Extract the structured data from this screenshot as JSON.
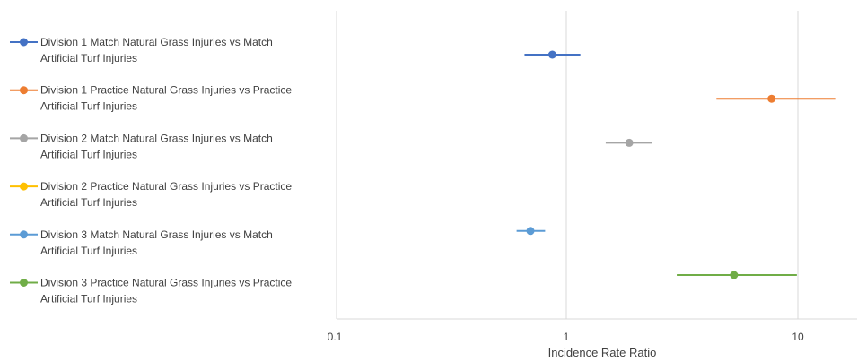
{
  "chart_data": {
    "type": "scatter",
    "subtype": "forest-plot",
    "xlabel": "Incidence Rate Ratio",
    "xscale": "log",
    "xlim": [
      0.1,
      15
    ],
    "xticks": [
      0.1,
      1,
      10
    ],
    "xtick_labels": [
      "0.1",
      "1",
      "10"
    ],
    "grid": "vertical-at-ticks",
    "legend": "left",
    "series": [
      {
        "name_line1": "Division 1 Match Natural Grass Injuries vs Match",
        "name_line2": "Artificial Turf Injuries",
        "color": "#4472C4",
        "estimate": 0.87,
        "ci_low": 0.66,
        "ci_high": 1.15
      },
      {
        "name_line1": "Division 1 Practice Natural Grass Injuries vs Practice",
        "name_line2": "Artificial Turf Injuries",
        "color": "#ED7D31",
        "estimate": 7.7,
        "ci_low": 4.45,
        "ci_high": 14.5
      },
      {
        "name_line1": "Division 2 Match Natural Grass Injuries vs Match",
        "name_line2": "Artificial Turf Injuries",
        "color": "#A5A5A5",
        "estimate": 1.87,
        "ci_low": 1.48,
        "ci_high": 2.35
      },
      {
        "name_line1": "Division 2 Practice Natural Grass Injuries vs Practice",
        "name_line2": "Artificial Turf Injuries",
        "color": "#FFC000",
        "estimate": null,
        "ci_low": null,
        "ci_high": null
      },
      {
        "name_line1": "Division 3 Match Natural Grass Injuries vs Match",
        "name_line2": "Artificial Turf Injuries",
        "color": "#5B9BD5",
        "estimate": 0.7,
        "ci_low": 0.61,
        "ci_high": 0.81
      },
      {
        "name_line1": "Division 3 Practice Natural Grass Injuries vs Practice",
        "name_line2": "Artificial Turf Injuries",
        "color": "#70AD47",
        "estimate": 5.3,
        "ci_low": 3.0,
        "ci_high": 9.9
      }
    ]
  }
}
